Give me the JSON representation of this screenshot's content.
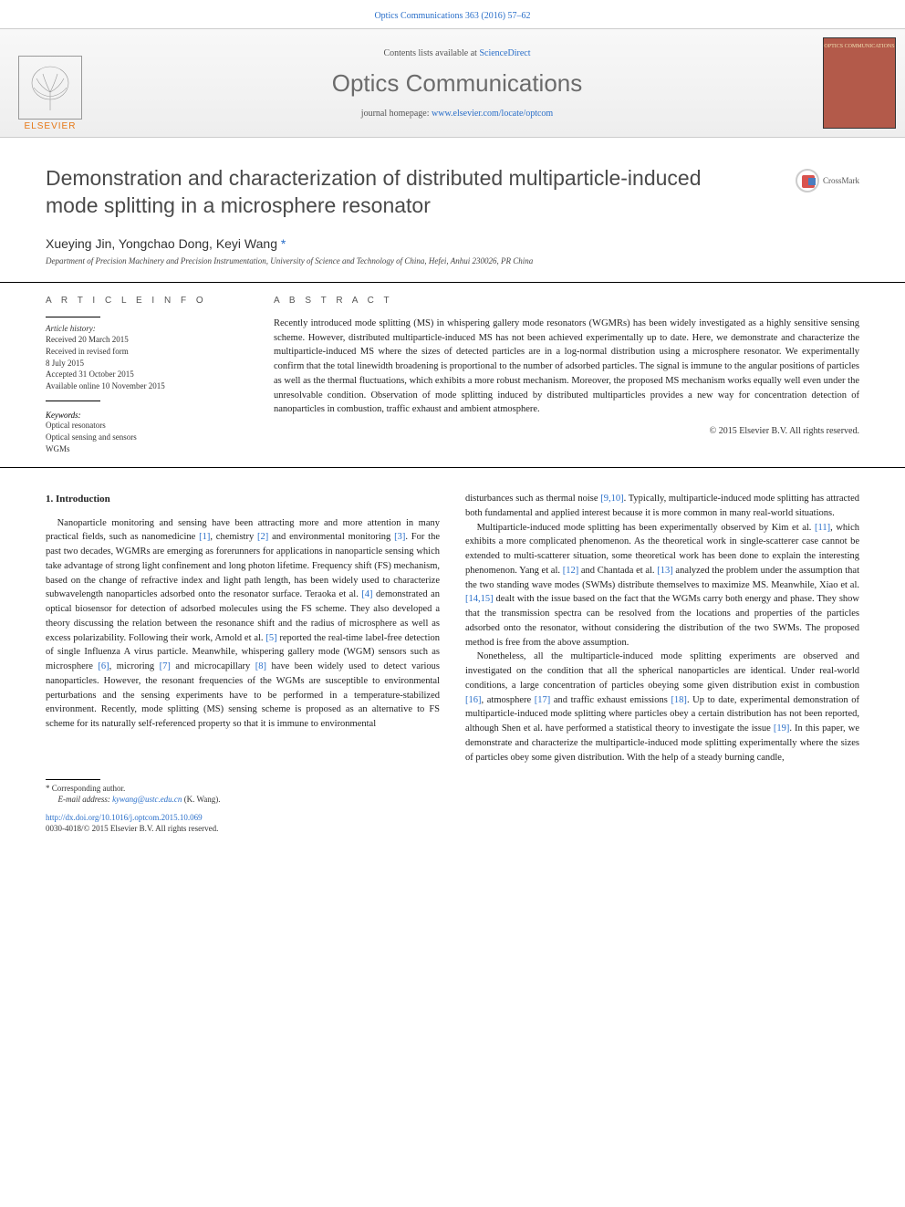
{
  "header": {
    "citation": "Optics Communications 363 (2016) 57–62",
    "contents_prefix": "Contents lists available at ",
    "contents_link": "ScienceDirect",
    "journal_name": "Optics Communications",
    "homepage_prefix": "journal homepage: ",
    "homepage_link": "www.elsevier.com/locate/optcom",
    "publisher": "ELSEVIER",
    "cover_text": "OPTICS COMMUNICATIONS"
  },
  "title": "Demonstration and characterization of distributed multiparticle-induced mode splitting in a microsphere resonator",
  "crossmark": "CrossMark",
  "authors": "Xueying Jin, Yongchao Dong, Keyi Wang",
  "corr_marker": "*",
  "affiliation": "Department of Precision Machinery and Precision Instrumentation, University of Science and Technology of China, Hefei, Anhui 230026, PR China",
  "meta": {
    "info_heading": "A R T I C L E   I N F O",
    "abstract_heading": "A B S T R A C T",
    "history_label": "Article history:",
    "history": [
      "Received 20 March 2015",
      "Received in revised form",
      "8 July 2015",
      "Accepted 31 October 2015",
      "Available online 10 November 2015"
    ],
    "keywords_label": "Keywords:",
    "keywords": [
      "Optical resonators",
      "Optical sensing and sensors",
      "WGMs"
    ],
    "abstract": "Recently introduced mode splitting (MS) in whispering gallery mode resonators (WGMRs) has been widely investigated as a highly sensitive sensing scheme. However, distributed multiparticle-induced MS has not been achieved experimentally up to date. Here, we demonstrate and characterize the multiparticle-induced MS where the sizes of detected particles are in a log-normal distribution using a microsphere resonator. We experimentally confirm that the total linewidth broadening is proportional to the number of adsorbed particles. The signal is immune to the angular positions of particles as well as the thermal fluctuations, which exhibits a more robust mechanism. Moreover, the proposed MS mechanism works equally well even under the unresolvable condition. Observation of mode splitting induced by distributed multiparticles provides a new way for concentration detection of nanoparticles in combustion, traffic exhaust and ambient atmosphere.",
    "copyright": "© 2015 Elsevier B.V. All rights reserved."
  },
  "body": {
    "section_heading": "1. Introduction",
    "col1_p1": "Nanoparticle monitoring and sensing have been attracting more and more attention in many practical fields, such as nanomedicine [1], chemistry [2] and environmental monitoring [3]. For the past two decades, WGMRs are emerging as forerunners for applications in nanoparticle sensing which take advantage of strong light confinement and long photon lifetime. Frequency shift (FS) mechanism, based on the change of refractive index and light path length, has been widely used to characterize subwavelength nanoparticles adsorbed onto the resonator surface. Teraoka et al. [4] demonstrated an optical biosensor for detection of adsorbed molecules using the FS scheme. They also developed a theory discussing the relation between the resonance shift and the radius of microsphere as well as excess polarizability. Following their work, Arnold et al. [5] reported the real-time label-free detection of single Influenza A virus particle. Meanwhile, whispering gallery mode (WGM) sensors such as microsphere [6], microring [7] and microcapillary [8] have been widely used to detect various nanoparticles. However, the resonant frequencies of the WGMs are susceptible to environmental perturbations and the sensing experiments have to be performed in a temperature-stabilized environment. Recently, mode splitting (MS) sensing scheme is proposed as an alternative to FS scheme for its naturally self-referenced property so that it is immune to environmental",
    "col2_p1": "disturbances such as thermal noise [9,10]. Typically, multiparticle-induced mode splitting has attracted both fundamental and applied interest because it is more common in many real-world situations.",
    "col2_p2": "Multiparticle-induced mode splitting has been experimentally observed by Kim et al. [11], which exhibits a more complicated phenomenon. As the theoretical work in single-scatterer case cannot be extended to multi-scatterer situation, some theoretical work has been done to explain the interesting phenomenon. Yang et al. [12] and Chantada et al. [13] analyzed the problem under the assumption that the two standing wave modes (SWMs) distribute themselves to maximize MS. Meanwhile, Xiao et al. [14,15] dealt with the issue based on the fact that the WGMs carry both energy and phase. They show that the transmission spectra can be resolved from the locations and properties of the particles adsorbed onto the resonator, without considering the distribution of the two SWMs. The proposed method is free from the above assumption.",
    "col2_p3": "Nonetheless, all the multiparticle-induced mode splitting experiments are observed and investigated on the condition that all the spherical nanoparticles are identical. Under real-world conditions, a large concentration of particles obeying some given distribution exist in combustion [16], atmosphere [17] and traffic exhaust emissions [18]. Up to date, experimental demonstration of multiparticle-induced mode splitting where particles obey a certain distribution has not been reported, although Shen et al. have performed a statistical theory to investigate the issue [19]. In this paper, we demonstrate and characterize the multiparticle-induced mode splitting experimentally where the sizes of particles obey some given distribution. With the help of a steady burning candle,"
  },
  "footer": {
    "corr_note": "* Corresponding author.",
    "email_label": "E-mail address: ",
    "email": "kywang@ustc.edu.cn",
    "email_suffix": " (K. Wang).",
    "doi": "http://dx.doi.org/10.1016/j.optcom.2015.10.069",
    "issn": "0030-4018/© 2015 Elsevier B.V. All rights reserved."
  },
  "refs": [
    "[1]",
    "[2]",
    "[3]",
    "[4]",
    "[5]",
    "[6]",
    "[7]",
    "[8]",
    "[9,10]",
    "[11]",
    "[12]",
    "[13]",
    "[14,15]",
    "[16]",
    "[17]",
    "[18]",
    "[19]"
  ],
  "colors": {
    "link": "#2a6fc9",
    "elsevier_orange": "#e67817",
    "title_gray": "#4a4a4a",
    "cover_bg": "#b35a4a"
  },
  "typography": {
    "body_fontsize_pt": 10.5,
    "title_fontsize_pt": 23,
    "journal_name_fontsize_pt": 26,
    "meta_fontsize_pt": 9
  }
}
